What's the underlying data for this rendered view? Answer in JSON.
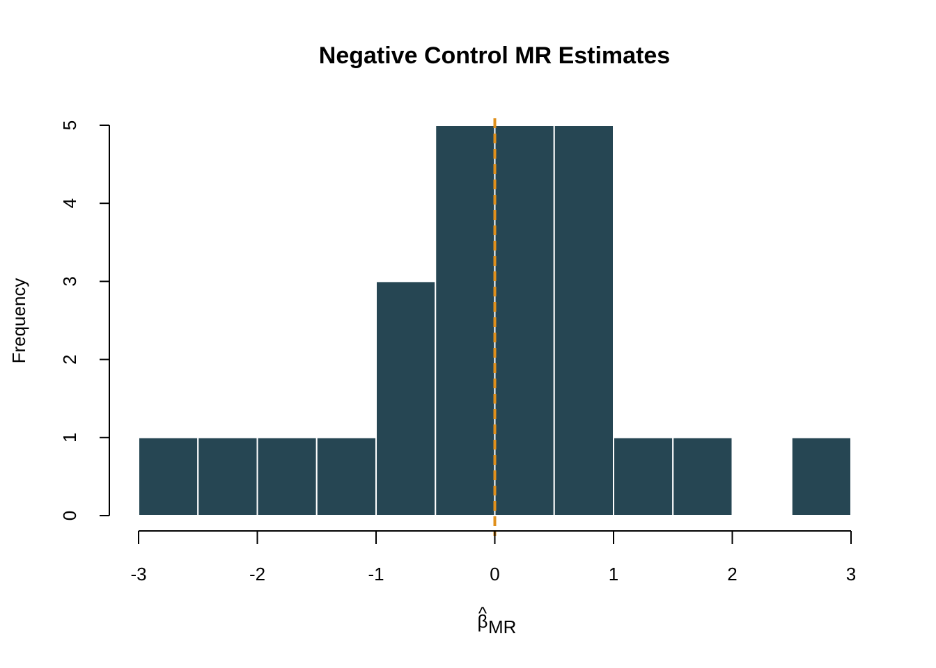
{
  "chart_data": {
    "type": "bar",
    "title": "Negative Control MR Estimates",
    "xlabel": {
      "symbol": "β",
      "hat": "^",
      "subscript": "MR"
    },
    "ylabel": "Frequency",
    "bin_edges": [
      -3,
      -2.5,
      -2,
      -1.5,
      -1,
      -0.5,
      0,
      0.5,
      1,
      1.5,
      2,
      2.5,
      3
    ],
    "counts": [
      1,
      1,
      1,
      1,
      3,
      5,
      5,
      5,
      1,
      1,
      0,
      1
    ],
    "xlim": [
      -3,
      3
    ],
    "ylim": [
      0,
      5
    ],
    "x_ticks": [
      -3,
      -2,
      -1,
      0,
      1,
      2,
      3
    ],
    "y_ticks": [
      0,
      1,
      2,
      3,
      4,
      5
    ],
    "reference_line": {
      "x": 0,
      "style": "dashed"
    },
    "grid": false,
    "legend": "none",
    "colors": {
      "bar_fill": "#264653",
      "bar_border": "#ffffff",
      "reference_line": "#E0901C",
      "axis": "#000000"
    }
  }
}
